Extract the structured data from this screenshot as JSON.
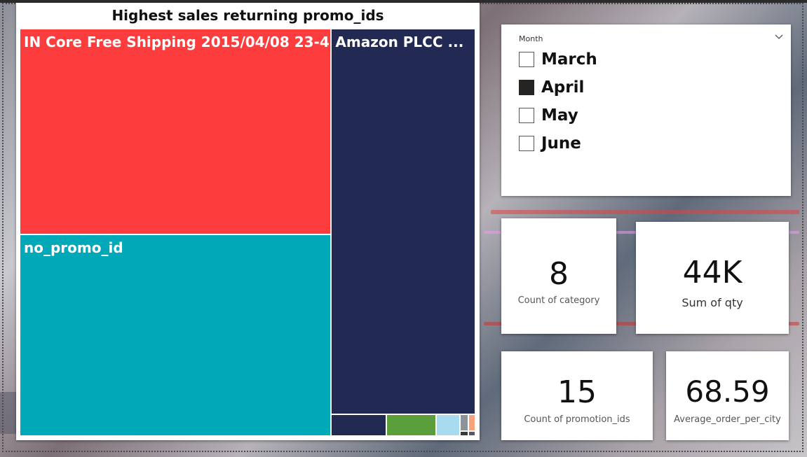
{
  "chart_data": {
    "type": "treemap",
    "title": "Highest sales returning promo_ids",
    "items": [
      {
        "label": "IN Core Free Shipping 2015/04/08 23-4...",
        "value": 158,
        "color": "#fd3d3d"
      },
      {
        "label": "no_promo_id",
        "value": 155,
        "color": "#01a8b8"
      },
      {
        "label": "Amazon PLCC ...",
        "value": 137,
        "color": "#222a54"
      },
      {
        "label": "",
        "value": 3,
        "color": "#222a54"
      },
      {
        "label": "",
        "value": 2.7,
        "color": "#5a9f3b"
      },
      {
        "label": "",
        "value": 1.3,
        "color": "#a8dbef"
      },
      {
        "label": "",
        "value": 0.35,
        "color": "#8e9399"
      },
      {
        "label": "",
        "value": 0.3,
        "color": "#f7a37c"
      },
      {
        "label": "",
        "value": 0.1,
        "color": "#3a3a3a"
      },
      {
        "label": "",
        "value": 0.08,
        "color": "#555a66"
      }
    ]
  },
  "slicer": {
    "header": "Month",
    "items": [
      {
        "label": "March",
        "checked": false
      },
      {
        "label": "April",
        "checked": true
      },
      {
        "label": "May",
        "checked": false
      },
      {
        "label": "June",
        "checked": false
      }
    ]
  },
  "kpis": {
    "count_category": {
      "value": "8",
      "label": "Count of category"
    },
    "sum_qty": {
      "value": "44K",
      "label": "Sum of qty"
    },
    "count_promotion": {
      "value": "15",
      "label": "Count of promotion_ids"
    },
    "avg_order": {
      "value": "68.59",
      "label": "Average_order_per_city"
    }
  }
}
